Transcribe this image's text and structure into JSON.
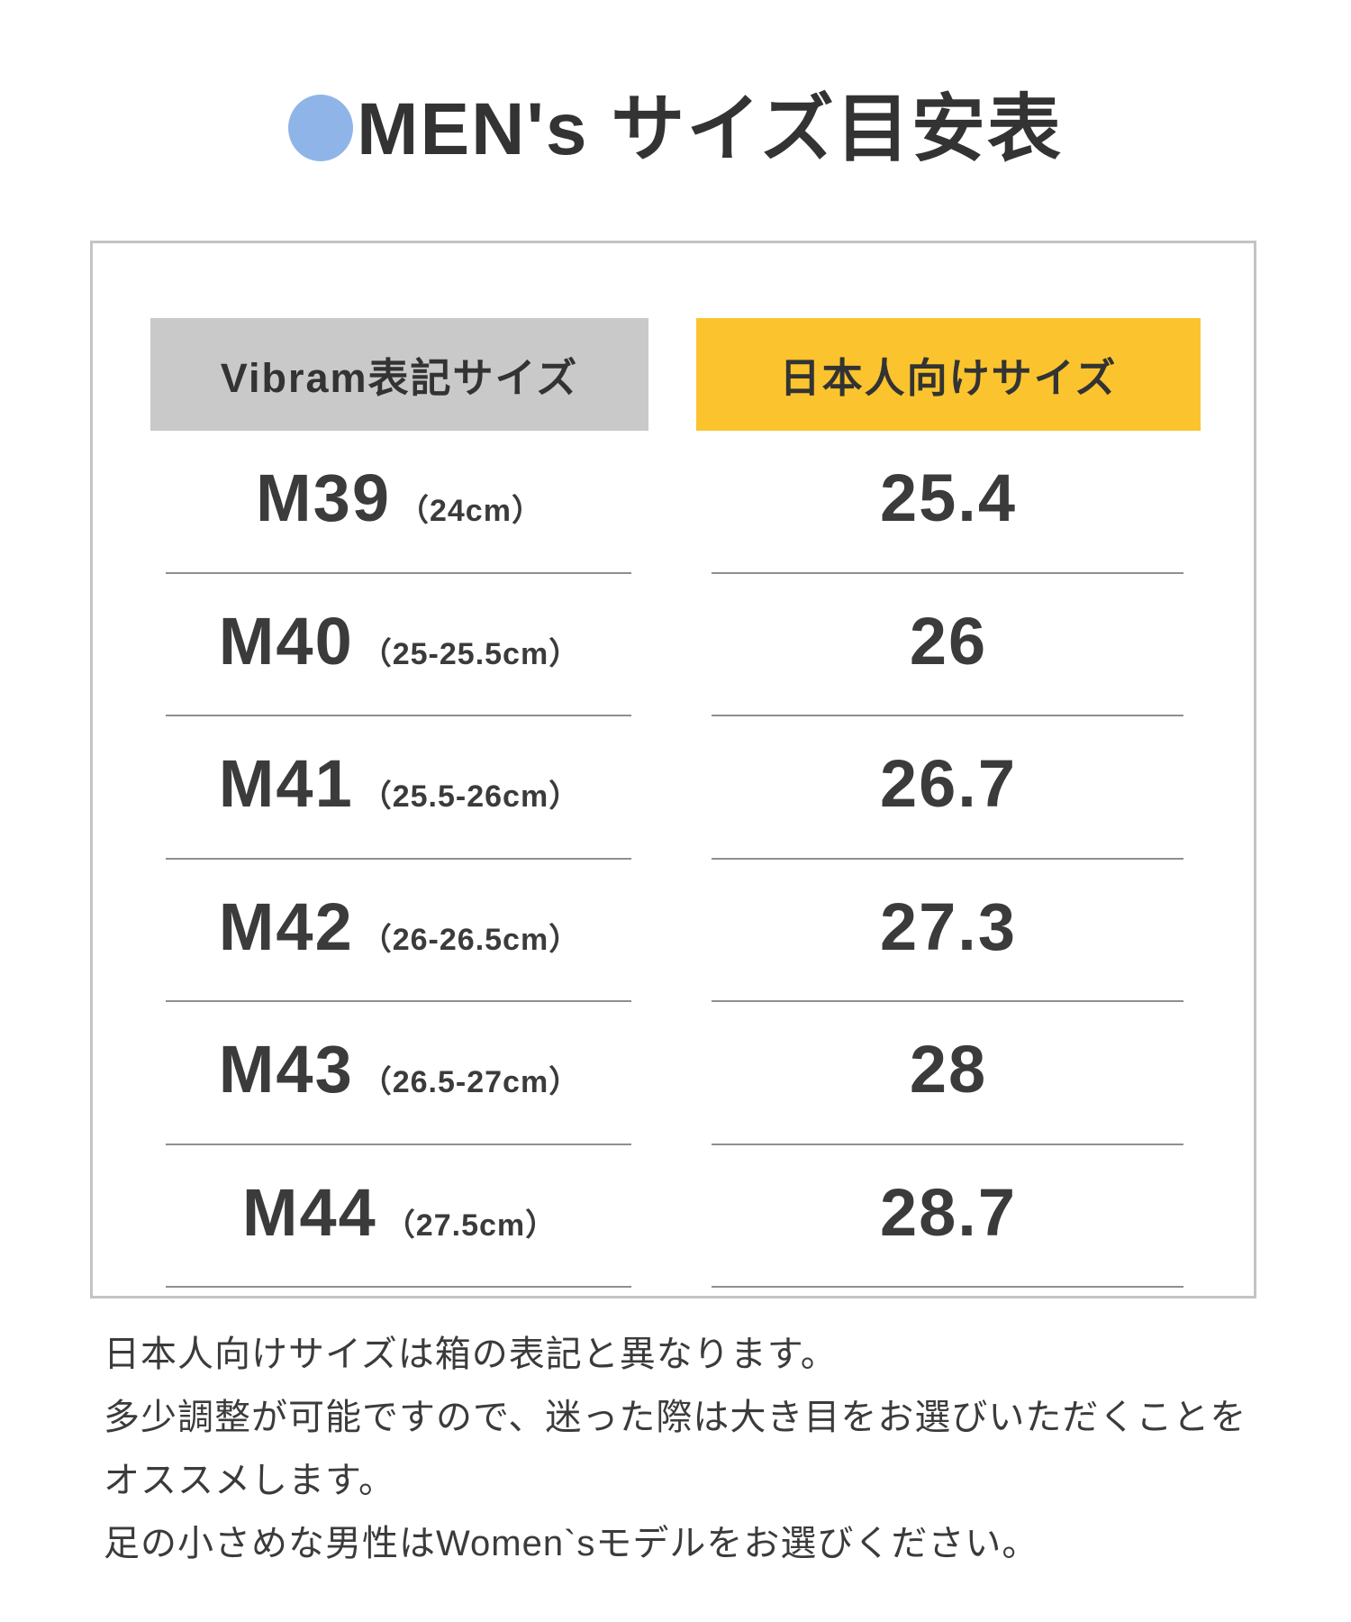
{
  "title": {
    "bullet": "●",
    "text": "MEN's サイズ目安表"
  },
  "table": {
    "headers": [
      {
        "label": "Vibram表記サイズ",
        "bg": "#c9c9c9"
      },
      {
        "label": "日本人向けサイズ",
        "bg": "#fbc42e"
      }
    ],
    "rows": [
      {
        "vibram_size": "M39",
        "cm_range": "（24cm）",
        "japan_size": "25.4"
      },
      {
        "vibram_size": "M40",
        "cm_range": "（25-25.5cm）",
        "japan_size": "26"
      },
      {
        "vibram_size": "M41",
        "cm_range": "（25.5-26cm）",
        "japan_size": "26.7"
      },
      {
        "vibram_size": "M42",
        "cm_range": "（26-26.5cm）",
        "japan_size": "27.3"
      },
      {
        "vibram_size": "M43",
        "cm_range": "（26.5-27cm）",
        "japan_size": "28"
      },
      {
        "vibram_size": "M44",
        "cm_range": "（27.5cm）",
        "japan_size": "28.7"
      }
    ]
  },
  "notes": {
    "lines": [
      "日本人向けサイズは箱の表記と異なります。",
      "多少調整が可能ですので、迷った際は大き目をお選びいただくことを",
      "オススメします。",
      "足の小さめな男性はWomen`sモデルをお選びください。"
    ]
  },
  "colors": {
    "title_bullet_blue": "#8fb5e8",
    "header_gray": "#c9c9c9",
    "header_yellow": "#fbc42e",
    "text_dark": "#3b3b3b",
    "box_border": "#c4c4c4",
    "divider": "#8f8f8f"
  },
  "chart_data": {
    "type": "table",
    "title": "MEN's サイズ目安表",
    "columns": [
      "Vibram表記サイズ",
      "日本人向けサイズ"
    ],
    "rows": [
      [
        "M39（24cm）",
        "25.4"
      ],
      [
        "M40（25-25.5cm）",
        "26"
      ],
      [
        "M41（25.5-26cm）",
        "26.7"
      ],
      [
        "M42（26-26.5cm）",
        "27.3"
      ],
      [
        "M43（26.5-27cm）",
        "28"
      ],
      [
        "M44（27.5cm）",
        "28.7"
      ]
    ]
  }
}
